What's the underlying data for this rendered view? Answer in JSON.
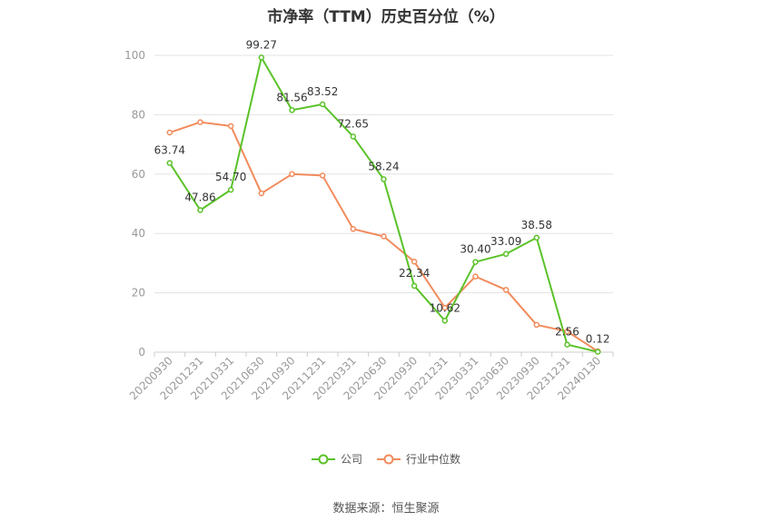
{
  "chart_data": {
    "type": "line",
    "title": "市净率（TTM）历史百分位（%）",
    "xlabel": "",
    "ylabel": "",
    "ylim": [
      0,
      100
    ],
    "yticks": [
      0,
      20,
      40,
      60,
      80,
      100
    ],
    "grid": true,
    "legend_position": "bottom",
    "categories": [
      "20200930",
      "20201231",
      "20210331",
      "20210630",
      "20210930",
      "20211231",
      "20220331",
      "20220630",
      "20220930",
      "20221231",
      "20230331",
      "20230630",
      "20230930",
      "20231231",
      "20240130"
    ],
    "series": [
      {
        "name": "公司",
        "color": "#5ac229",
        "values": [
          63.74,
          47.86,
          54.7,
          99.27,
          81.56,
          83.52,
          72.65,
          58.24,
          22.34,
          10.62,
          30.4,
          33.09,
          38.58,
          2.56,
          0.12
        ],
        "labels": [
          "63.74",
          "47.86",
          "54.70",
          "99.27",
          "81.56",
          "83.52",
          "72.65",
          "58.24",
          "22.34",
          "10.62",
          "30.40",
          "33.09",
          "38.58",
          "2.56",
          "0.12"
        ]
      },
      {
        "name": "行业中位数",
        "color": "#f28b5c",
        "values": [
          74,
          77.5,
          76.2,
          53.5,
          60,
          59.5,
          41.5,
          39,
          30.5,
          15,
          25.5,
          21,
          9.2,
          7,
          0.3
        ]
      }
    ],
    "source": "数据来源：恒生聚源"
  }
}
